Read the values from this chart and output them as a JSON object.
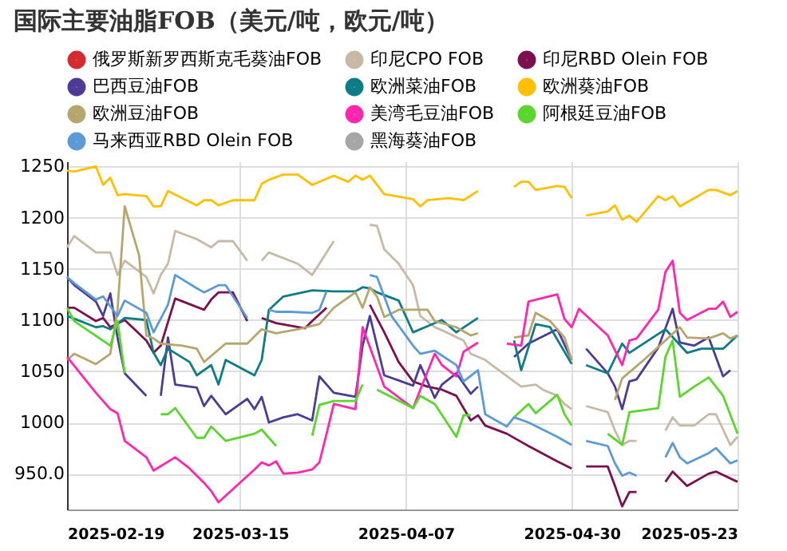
{
  "chart_data": {
    "type": "line",
    "title": "国际主要油脂FOB（美元/吨，欧元/吨）",
    "xlim": [
      "2025-02-19",
      "2025-05-23"
    ],
    "xticks": [
      "2025-02-19",
      "2025-03-15",
      "2025-04-07",
      "2025-04-30",
      "2025-05-23"
    ],
    "ylim": [
      915,
      1255
    ],
    "yticks": [
      {
        "value": 950,
        "label": "950.0"
      },
      1000,
      1050,
      1100,
      1150,
      1200,
      1250
    ],
    "grid": true,
    "legend": "top",
    "marker": "none",
    "line_style": "solid",
    "series": [
      {
        "name": "俄罗斯新罗西斯克毛葵油FOB",
        "color": "#d42a30"
      },
      {
        "name": "印尼CPO FOB",
        "color": "#c8b9a6",
        "x": [
          "2025-02-19",
          "2025-02-20",
          "2025-02-23",
          "2025-02-25",
          "2025-02-26",
          "2025-02-27",
          "2025-03-02",
          "2025-03-03",
          "2025-03-04",
          "2025-03-05",
          "2025-03-06",
          "2025-03-09",
          "2025-03-11",
          "2025-03-12",
          "2025-03-14",
          "2025-03-16",
          "2025-03-17",
          "2025-03-18",
          "2025-03-19",
          "2025-03-23",
          "2025-03-25",
          "2025-03-26",
          "2025-03-28",
          "2025-03-30",
          "2025-04-02",
          "2025-04-03",
          "2025-04-04",
          "2025-04-06",
          "2025-04-08",
          "2025-04-09",
          "2025-04-11",
          "2025-04-12",
          "2025-04-15",
          "2025-04-16",
          "2025-04-18",
          "2025-04-22",
          "2025-04-23",
          "2025-04-25",
          "2025-04-26",
          "2025-04-28",
          "2025-04-29",
          "2025-04-30",
          "2025-05-01",
          "2025-05-02",
          "2025-05-05",
          "2025-05-06",
          "2025-05-07",
          "2025-05-08",
          "2025-05-09",
          "2025-05-11",
          "2025-05-13",
          "2025-05-14",
          "2025-05-15",
          "2025-05-17",
          "2025-05-19",
          "2025-05-20",
          "2025-05-22",
          "2025-05-23"
        ],
        "values": [
          1171,
          1182,
          1166,
          1166,
          1144,
          1158,
          1142,
          1126,
          1144,
          1155,
          1187,
          1179,
          1171,
          1177,
          1177,
          1158,
          null,
          1158,
          1166,
          1155,
          1144,
          1155,
          1177,
          null,
          1193,
          1192,
          1169,
          1155,
          1134,
          1104,
          1093,
          1090,
          1080,
          1067,
          1061,
          1040,
          1035,
          1037,
          1032,
          1026,
          1018,
          1013,
          null,
          1016,
          1010,
          992,
          978,
          982,
          982,
          null,
          992,
          1005,
          997,
          997,
          1008,
          1008,
          978,
          986
        ]
      },
      {
        "name": "印尼RBD Olein FOB",
        "color": "#7b0f4f",
        "x": [
          "2025-02-19",
          "2025-02-20",
          "2025-02-23",
          "2025-02-24",
          "2025-02-25",
          "2025-02-27",
          "2025-03-02",
          "2025-03-03",
          "2025-03-04",
          "2025-03-06",
          "2025-03-10",
          "2025-03-11",
          "2025-03-12",
          "2025-03-14",
          "2025-03-16",
          "2025-03-17",
          "2025-03-18",
          "2025-03-20",
          "2025-03-24",
          "2025-03-25",
          "2025-03-27",
          "2025-03-30",
          "2025-04-02",
          "2025-04-04",
          "2025-04-06",
          "2025-04-08",
          "2025-04-10",
          "2025-04-12",
          "2025-04-14",
          "2025-04-16",
          "2025-04-17",
          "2025-04-18",
          "2025-04-21",
          "2025-04-23",
          "2025-04-24",
          "2025-04-28",
          "2025-04-30",
          "2025-05-01",
          "2025-05-02",
          "2025-05-05",
          "2025-05-06",
          "2025-05-07",
          "2025-05-08",
          "2025-05-09",
          "2025-05-11",
          "2025-05-13",
          "2025-05-14",
          "2025-05-16",
          "2025-05-19",
          "2025-05-20",
          "2025-05-23"
        ],
        "values": [
          1112,
          1112,
          1099,
          1102,
          1093,
          1100,
          1080,
          1068,
          1075,
          1121,
          1110,
          1120,
          1127,
          1127,
          1099,
          null,
          1102,
          1097,
          1092,
          1099,
          1112,
          null,
          1115,
          1088,
          1059,
          1040,
          1035,
          1032,
          1026,
          1002,
          1007,
          997,
          989,
          981,
          977,
          962,
          955,
          null,
          957,
          957,
          938,
          918,
          932,
          932,
          null,
          942,
          952,
          938,
          950,
          952,
          942
        ]
      },
      {
        "name": "巴西豆油FOB",
        "color": "#4e3b96",
        "x": [
          "2025-02-19",
          "2025-02-20",
          "2025-02-23",
          "2025-02-24",
          "2025-02-25",
          "2025-02-26",
          "2025-02-27",
          "2025-03-02",
          "2025-03-03",
          "2025-03-04",
          "2025-03-05",
          "2025-03-06",
          "2025-03-09",
          "2025-03-10",
          "2025-03-11",
          "2025-03-13",
          "2025-03-16",
          "2025-03-17",
          "2025-03-18",
          "2025-03-19",
          "2025-03-21",
          "2025-03-23",
          "2025-03-25",
          "2025-03-26",
          "2025-03-28",
          "2025-03-31",
          "2025-04-01",
          "2025-04-02",
          "2025-04-04",
          "2025-04-06",
          "2025-04-08",
          "2025-04-09",
          "2025-04-11",
          "2025-04-12",
          "2025-04-14",
          "2025-04-16",
          "2025-04-17",
          "2025-04-19",
          "2025-04-22",
          "2025-04-24",
          "2025-04-28",
          "2025-04-30",
          "2025-05-01",
          "2025-05-02",
          "2025-05-05",
          "2025-05-06",
          "2025-05-07",
          "2025-05-08",
          "2025-05-09",
          "2025-05-12",
          "2025-05-14",
          "2025-05-15",
          "2025-05-17",
          "2025-05-19",
          "2025-05-21",
          "2025-05-22"
        ],
        "values": [
          1142,
          1134,
          1118,
          1104,
          1126,
          1083,
          1048,
          1026,
          null,
          1026,
          1083,
          1037,
          1034,
          1016,
          1026,
          1008,
          1023,
          1013,
          1025,
          1000,
          1005,
          1008,
          1002,
          1045,
          1029,
          1025,
          1075,
          1104,
          1046,
          1041,
          1036,
          1056,
          1024,
          1037,
          1048,
          1028,
          1035,
          null,
          1064,
          1077,
          1091,
          1061,
          null,
          1072,
          1048,
          1035,
          1013,
          1040,
          1042,
          1073,
          1111,
          1078,
          1075,
          1083,
          1045,
          1051
        ]
      },
      {
        "name": "欧洲菜油FOB",
        "color": "#0e7c86",
        "x": [
          "2025-02-19",
          "2025-02-23",
          "2025-02-24",
          "2025-02-25",
          "2025-02-27",
          "2025-03-02",
          "2025-03-03",
          "2025-03-04",
          "2025-03-05",
          "2025-03-08",
          "2025-03-09",
          "2025-03-11",
          "2025-03-12",
          "2025-03-13",
          "2025-03-17",
          "2025-03-18",
          "2025-03-19",
          "2025-03-21",
          "2025-03-25",
          "2025-03-28",
          "2025-03-31",
          "2025-04-01",
          "2025-04-02",
          "2025-04-03",
          "2025-04-06",
          "2025-04-08",
          "2025-04-10",
          "2025-04-12",
          "2025-04-14",
          "2025-04-17",
          "2025-04-19",
          "2025-04-22",
          "2025-04-23",
          "2025-04-25",
          "2025-04-27",
          "2025-04-29",
          "2025-04-30",
          "2025-05-01",
          "2025-05-02",
          "2025-05-05",
          "2025-05-07",
          "2025-05-08",
          "2025-05-13",
          "2025-05-16",
          "2025-05-18",
          "2025-05-21",
          "2025-05-23"
        ],
        "values": [
          1104,
          1093,
          1094,
          1091,
          1102,
          1100,
          1068,
          1056,
          1072,
          1059,
          1046,
          1056,
          1037,
          1061,
          1046,
          1061,
          1110,
          1123,
          1129,
          1128,
          1128,
          1132,
          1131,
          1127,
          1119,
          1088,
          1094,
          1100,
          1088,
          1102,
          null,
          1080,
          1051,
          1096,
          1093,
          1069,
          1057,
          null,
          1056,
          1048,
          1077,
          1068,
          1091,
          1068,
          1072,
          1072,
          1085
        ]
      },
      {
        "name": "欧洲葵油FOB",
        "color": "#ffc000",
        "x": [
          "2025-02-19",
          "2025-02-20",
          "2025-02-23",
          "2025-02-24",
          "2025-02-25",
          "2025-02-26",
          "2025-02-27",
          "2025-03-02",
          "2025-03-03",
          "2025-03-04",
          "2025-03-05",
          "2025-03-09",
          "2025-03-10",
          "2025-03-11",
          "2025-03-12",
          "2025-03-14",
          "2025-03-17",
          "2025-03-18",
          "2025-03-19",
          "2025-03-21",
          "2025-03-23",
          "2025-03-25",
          "2025-03-28",
          "2025-03-30",
          "2025-03-31",
          "2025-04-01",
          "2025-04-02",
          "2025-04-04",
          "2025-04-08",
          "2025-04-09",
          "2025-04-10",
          "2025-04-13",
          "2025-04-15",
          "2025-04-17",
          "2025-04-19",
          "2025-04-22",
          "2025-04-23",
          "2025-04-24",
          "2025-04-25",
          "2025-04-28",
          "2025-04-29",
          "2025-04-30",
          "2025-05-01",
          "2025-05-02",
          "2025-05-05",
          "2025-05-06",
          "2025-05-07",
          "2025-05-08",
          "2025-05-09",
          "2025-05-12",
          "2025-05-13",
          "2025-05-14",
          "2025-05-15",
          "2025-05-17",
          "2025-05-19",
          "2025-05-20",
          "2025-05-22",
          "2025-05-23"
        ],
        "values": [
          1246,
          1245,
          1250,
          1232,
          1239,
          1222,
          1223,
          1221,
          1211,
          1211,
          1226,
          1212,
          1217,
          1217,
          1212,
          1217,
          1217,
          1233,
          1237,
          1242,
          1242,
          1232,
          1241,
          1235,
          1241,
          1237,
          1241,
          1223,
          1218,
          1211,
          1217,
          1219,
          1217,
          1226,
          null,
          1230,
          1235,
          1235,
          1227,
          1231,
          1230,
          1219,
          null,
          1202,
          1206,
          1212,
          1198,
          1202,
          1196,
          1221,
          1217,
          1221,
          1211,
          1219,
          1227,
          1227,
          1222,
          1226
        ]
      },
      {
        "name": "欧洲豆油FOB",
        "color": "#b5a66e",
        "x": [
          "2025-02-19",
          "2025-02-20",
          "2025-02-23",
          "2025-02-25",
          "2025-02-26",
          "2025-02-27",
          "2025-03-01",
          "2025-03-02",
          "2025-03-03",
          "2025-03-04",
          "2025-03-07",
          "2025-03-09",
          "2025-03-10",
          "2025-03-13",
          "2025-03-16",
          "2025-03-18",
          "2025-03-20",
          "2025-03-23",
          "2025-03-26",
          "2025-03-28",
          "2025-03-31",
          "2025-04-01",
          "2025-04-02",
          "2025-04-03",
          "2025-04-04",
          "2025-04-06",
          "2025-04-08",
          "2025-04-10",
          "2025-04-11",
          "2025-04-14",
          "2025-04-16",
          "2025-04-17",
          "2025-04-19",
          "2025-04-22",
          "2025-04-24",
          "2025-04-25",
          "2025-04-27",
          "2025-04-29",
          "2025-04-30",
          "2025-05-01",
          "2025-05-06",
          "2025-05-07",
          "2025-05-10",
          "2025-05-13",
          "2025-05-15",
          "2025-05-16",
          "2025-05-19",
          "2025-05-21",
          "2025-05-22",
          "2025-05-23"
        ],
        "values": [
          1061,
          1067,
          1057,
          1067,
          1110,
          1211,
          1163,
          1085,
          1082,
          1077,
          1075,
          1072,
          1059,
          1077,
          1077,
          1091,
          1087,
          1091,
          1096,
          1112,
          1127,
          1112,
          1132,
          1123,
          1103,
          1110,
          1110,
          1110,
          1099,
          1093,
          1085,
          1087,
          null,
          1083,
          1085,
          1107,
          1099,
          1083,
          1061,
          null,
          1022,
          1043,
          1061,
          1080,
          1093,
          1083,
          1082,
          1087,
          1082,
          1085
        ]
      },
      {
        "name": "美湾毛豆油FOB",
        "color": "#ff26b0",
        "x": [
          "2025-02-19",
          "2025-02-23",
          "2025-02-24",
          "2025-02-25",
          "2025-02-26",
          "2025-02-27",
          "2025-03-02",
          "2025-03-03",
          "2025-03-06",
          "2025-03-08",
          "2025-03-10",
          "2025-03-11",
          "2025-03-12",
          "2025-03-17",
          "2025-03-18",
          "2025-03-19",
          "2025-03-20",
          "2025-03-21",
          "2025-03-23",
          "2025-03-25",
          "2025-03-26",
          "2025-03-27",
          "2025-03-28",
          "2025-03-31",
          "2025-04-01",
          "2025-04-04",
          "2025-04-08",
          "2025-04-09",
          "2025-04-11",
          "2025-04-12",
          "2025-04-14",
          "2025-04-15",
          "2025-04-17",
          "2025-04-19",
          "2025-04-21",
          "2025-04-23",
          "2025-04-24",
          "2025-04-28",
          "2025-04-29",
          "2025-04-30",
          "2025-05-01",
          "2025-05-05",
          "2025-05-07",
          "2025-05-08",
          "2025-05-09",
          "2025-05-12",
          "2025-05-13",
          "2025-05-14",
          "2025-05-15",
          "2025-05-16",
          "2025-05-19",
          "2025-05-20",
          "2025-05-21",
          "2025-05-22",
          "2025-05-23"
        ],
        "values": [
          1064,
          1029,
          1021,
          1013,
          1009,
          982,
          966,
          953,
          966,
          955,
          941,
          933,
          922,
          954,
          961,
          958,
          962,
          950,
          951,
          954,
          961,
          989,
          1018,
          1013,
          1093,
          1035,
          1014,
          1032,
          1067,
          1056,
          1045,
          1069,
          1078,
          null,
          1077,
          1075,
          1118,
          1125,
          1101,
          1093,
          1111,
          1085,
          1056,
          1080,
          1082,
          1110,
          1147,
          1158,
          1107,
          1100,
          1111,
          1111,
          1118,
          1103,
          1108
        ]
      },
      {
        "name": "阿根廷豆油FOB",
        "color": "#5ad62c",
        "x": [
          "2025-02-19",
          "2025-02-20",
          "2025-02-25",
          "2025-02-26",
          "2025-02-27",
          "2025-03-01",
          "2025-03-04",
          "2025-03-05",
          "2025-03-06",
          "2025-03-09",
          "2025-03-10",
          "2025-03-11",
          "2025-03-13",
          "2025-03-17",
          "2025-03-18",
          "2025-03-19",
          "2025-03-20",
          "2025-03-22",
          "2025-03-25",
          "2025-03-26",
          "2025-03-28",
          "2025-03-31",
          "2025-04-01",
          "2025-04-02",
          "2025-04-03",
          "2025-04-08",
          "2025-04-09",
          "2025-04-11",
          "2025-04-14",
          "2025-04-15",
          "2025-04-16",
          "2025-04-18",
          "2025-04-22",
          "2025-04-24",
          "2025-04-25",
          "2025-04-28",
          "2025-04-29",
          "2025-04-30",
          "2025-05-01",
          "2025-05-05",
          "2025-05-07",
          "2025-05-08",
          "2025-05-09",
          "2025-05-12",
          "2025-05-13",
          "2025-05-14",
          "2025-05-15",
          "2025-05-17",
          "2025-05-19",
          "2025-05-21",
          "2025-05-23"
        ],
        "values": [
          1112,
          1099,
          1075,
          1099,
          1048,
          null,
          1008,
          1008,
          1014,
          985,
          985,
          996,
          982,
          989,
          993,
          985,
          977,
          null,
          987,
          1017,
          1021,
          1021,
          1037,
          null,
          1032,
          1014,
          1026,
          1018,
          986,
          1007,
          1007,
          null,
          1005,
          1018,
          1009,
          1027,
          1008,
          997,
          null,
          989,
          978,
          1010,
          1011,
          1014,
          1064,
          1080,
          1025,
          1035,
          1044,
          1026,
          989
        ]
      },
      {
        "name": "马来西亚RBD Olein FOB",
        "color": "#5b9bd5",
        "x": [
          "2025-02-19",
          "2025-02-20",
          "2025-02-23",
          "2025-02-24",
          "2025-02-26",
          "2025-02-27",
          "2025-03-02",
          "2025-03-03",
          "2025-03-05",
          "2025-03-06",
          "2025-03-09",
          "2025-03-10",
          "2025-03-12",
          "2025-03-13",
          "2025-03-16",
          "2025-03-17",
          "2025-03-19",
          "2025-03-20",
          "2025-03-22",
          "2025-03-25",
          "2025-03-26",
          "2025-03-27",
          "2025-03-30",
          "2025-04-02",
          "2025-04-03",
          "2025-04-05",
          "2025-04-08",
          "2025-04-09",
          "2025-04-11",
          "2025-04-14",
          "2025-04-15",
          "2025-04-17",
          "2025-04-18",
          "2025-04-21",
          "2025-04-22",
          "2025-04-24",
          "2025-04-28",
          "2025-04-30",
          "2025-05-01",
          "2025-05-02",
          "2025-05-05",
          "2025-05-06",
          "2025-05-07",
          "2025-05-08",
          "2025-05-09",
          "2025-05-11",
          "2025-05-13",
          "2025-05-14",
          "2025-05-15",
          "2025-05-16",
          "2025-05-19",
          "2025-05-20",
          "2025-05-22",
          "2025-05-23"
        ],
        "values": [
          1142,
          1136,
          1120,
          1123,
          1104,
          1119,
          1107,
          1088,
          1115,
          1144,
          1131,
          1127,
          1134,
          1134,
          1102,
          null,
          1110,
          1108,
          1108,
          1107,
          1110,
          1128,
          null,
          1144,
          1142,
          1104,
          1075,
          1067,
          1070,
          1056,
          1040,
          1051,
          1008,
          996,
          1005,
          1000,
          986,
          978,
          null,
          982,
          977,
          960,
          948,
          951,
          948,
          null,
          966,
          980,
          966,
          960,
          970,
          975,
          960,
          963
        ]
      },
      {
        "name": "黑海葵油FOB",
        "color": "#a6a6a6"
      }
    ]
  }
}
